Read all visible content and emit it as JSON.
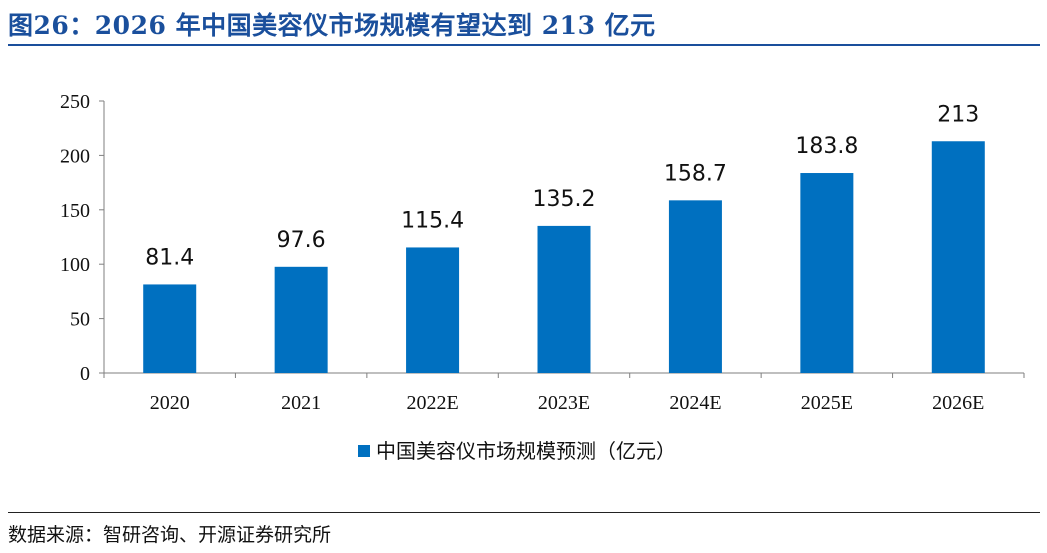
{
  "header": {
    "title": "图26：2026 年中国美容仪市场规模有望达到 213 亿元"
  },
  "footer": {
    "source": "数据来源：智研咨询、开源证券研究所"
  },
  "colors": {
    "bar": "#0070c0",
    "title": "#1a4f9c"
  },
  "chart_data": {
    "type": "bar",
    "title": "",
    "xlabel": "",
    "ylabel": "",
    "categories": [
      "2020",
      "2021",
      "2022E",
      "2023E",
      "2024E",
      "2025E",
      "2026E"
    ],
    "series": [
      {
        "name": "中国美容仪市场规模预测（亿元）",
        "values": [
          81.4,
          97.6,
          115.4,
          135.2,
          158.7,
          183.8,
          213
        ],
        "labels": [
          "81.4",
          "97.6",
          "115.4",
          "135.2",
          "158.7",
          "183.8",
          "213"
        ]
      }
    ],
    "ylim": [
      0,
      250
    ],
    "yticks": [
      0,
      50,
      100,
      150,
      200,
      250
    ],
    "grid": false,
    "legend": "bottom-center"
  }
}
